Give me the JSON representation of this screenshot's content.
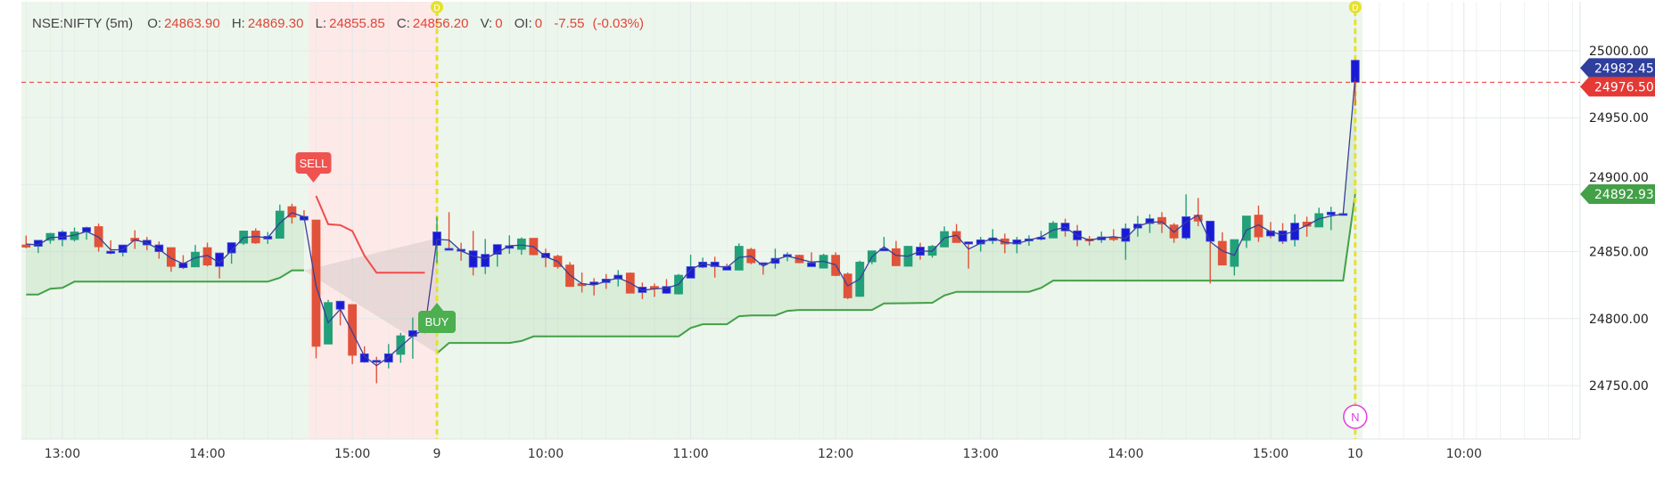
{
  "legend": {
    "symbol": "NSE:NIFTY (5m)",
    "o_label": "O:",
    "o": "24863.90",
    "h_label": "H:",
    "h": "24869.30",
    "l_label": "L:",
    "l": "24855.85",
    "c_label": "C:",
    "c": "24856.20",
    "v_label": "V:",
    "v": "0",
    "oi_label": "OI:",
    "oi": "0",
    "change": "-7.55",
    "change_pct": "(-0.03%)"
  },
  "price_tags": [
    {
      "label": "24982.45",
      "value": 24982.45,
      "color": "#2f3f9e"
    },
    {
      "label": "24976.50",
      "value": 24976.5,
      "color": "#e53935"
    },
    {
      "label": "24892.93",
      "value": 24892.93,
      "color": "#43a047"
    }
  ],
  "signals": {
    "sell": "SELL",
    "buy": "BUY",
    "day_marker": "D",
    "news_marker": "N"
  },
  "colors": {
    "up": "#22a079",
    "down": "#e0533a",
    "neutral": "#1a1ad6",
    "line": "#3a3f9a",
    "stop_up": "#43a047",
    "stop_down": "#f04c4c",
    "sell": "#ef5350",
    "buy": "#4caf50",
    "day_line": "#e6e12a",
    "news": "#e040e0"
  },
  "chart_data": {
    "type": "candlestick",
    "title": "NSE:NIFTY (5m)",
    "ylim": [
      24715,
      25030
    ],
    "y_ticks": [
      {
        "value": 25000,
        "label": "25000.00"
      },
      {
        "value": 24950,
        "label": "24950.00"
      },
      {
        "value": 24900,
        "label": "24900.00"
      },
      {
        "value": 24850,
        "label": "24850.00"
      },
      {
        "value": 24800,
        "label": "24800.00"
      },
      {
        "value": 24750,
        "label": "24750.00"
      }
    ],
    "x_ticks": [
      {
        "bar": -31,
        "label": "13:00"
      },
      {
        "bar": -19,
        "label": "14:00"
      },
      {
        "bar": -7,
        "label": "15:00"
      },
      {
        "bar": 0,
        "label": "9"
      },
      {
        "bar": 9,
        "label": "10:00"
      },
      {
        "bar": 21,
        "label": "11:00"
      },
      {
        "bar": 33,
        "label": "12:00"
      },
      {
        "bar": 45,
        "label": "13:00"
      },
      {
        "bar": 57,
        "label": "14:00"
      },
      {
        "bar": 69,
        "label": "15:00"
      },
      {
        "bar": 76,
        "label": "10"
      },
      {
        "bar": 85,
        "label": "10:00"
      }
    ],
    "day_breaks": [
      0,
      76
    ],
    "candle_fields": [
      "bar",
      "type",
      "open",
      "high",
      "low",
      "close"
    ],
    "candles": [
      [
        -34,
        "d",
        24855,
        24862,
        24852.5,
        24853.4
      ],
      [
        -33,
        "b",
        24854,
        24858.5,
        24849,
        24858.5
      ],
      [
        -32,
        "u",
        24858.5,
        24864,
        24856,
        24863.6
      ],
      [
        -31,
        "b",
        24859,
        24866,
        24854,
        24864.7
      ],
      [
        -30,
        "u",
        24859,
        24868,
        24857.6,
        24864.7
      ],
      [
        -29,
        "b",
        24864.7,
        24868.7,
        24859,
        24868
      ],
      [
        -28,
        "d",
        24868.7,
        24871,
        24850,
        24853.6
      ],
      [
        -27,
        "b",
        24850.3,
        24858.5,
        24848,
        24848.7
      ],
      [
        -26,
        "b",
        24849.4,
        24855,
        24846.5,
        24855
      ],
      [
        -25,
        "d",
        24860,
        24866,
        24852,
        24858
      ],
      [
        -24,
        "b",
        24858.5,
        24861,
        24851,
        24855
      ],
      [
        -23,
        "b",
        24855,
        24857.6,
        24844.7,
        24850
      ],
      [
        -22,
        "d",
        24853,
        24853,
        24835,
        24839
      ],
      [
        -21,
        "b",
        24841.4,
        24847.4,
        24837,
        24838
      ],
      [
        -20,
        "u",
        24838.6,
        24855,
        24838.6,
        24849.6
      ],
      [
        -19,
        "d",
        24853,
        24856.7,
        24839,
        24840
      ],
      [
        -18,
        "b",
        24849,
        24849,
        24830,
        24839
      ],
      [
        -17,
        "b",
        24849,
        24856.7,
        24841,
        24856.7
      ],
      [
        -16,
        "u",
        24856.3,
        24865.4,
        24855,
        24865.4
      ],
      [
        -15,
        "d",
        24865.4,
        24867.4,
        24855.8,
        24856.5
      ],
      [
        -14,
        "b",
        24859.4,
        24864.7,
        24855.8,
        24861.4
      ],
      [
        -13,
        "u",
        24860,
        24885.1,
        24860,
        24880.3
      ],
      [
        -12,
        "d",
        24883.6,
        24885.8,
        24871,
        24875.8
      ],
      [
        -11,
        "b",
        24876.3,
        24881,
        24873.2,
        24873.6
      ],
      [
        -10,
        "d",
        24873.6,
        24873.6,
        24770.4,
        24779.3
      ],
      [
        -9,
        "u",
        24781,
        24814,
        24781,
        24812
      ],
      [
        -8,
        "b",
        24813,
        24813,
        24795,
        24807
      ],
      [
        -7,
        "d",
        24810.5,
        24810.5,
        24766,
        24772.6
      ],
      [
        -6,
        "b",
        24773.7,
        24779.3,
        24767,
        24767.5
      ],
      [
        -5,
        "b",
        24768.8,
        24771.5,
        24751.7,
        24767.5
      ],
      [
        -4,
        "b",
        24767.5,
        24781,
        24762.8,
        24773.7
      ],
      [
        -3,
        "u",
        24773.3,
        24789.4,
        24767,
        24787.2
      ],
      [
        -2,
        "b",
        24786.8,
        24800.8,
        24770,
        24791
      ],
      [
        -1,
        "b",
        24791,
        24796,
        24789,
        24793
      ],
      [
        0,
        "b",
        24854.7,
        24876,
        24841.4,
        24864.7
      ],
      [
        1,
        "b",
        24852.4,
        24879.5,
        24851.3,
        24851.3
      ],
      [
        2,
        "b",
        24851.7,
        24856.6,
        24843.3,
        24850.6
      ],
      [
        3,
        "b",
        24850.6,
        24865.5,
        24832.2,
        24838.4
      ],
      [
        4,
        "b",
        24838.8,
        24859.5,
        24833.3,
        24848
      ],
      [
        5,
        "b",
        24848,
        24855.3,
        24838.8,
        24855.3
      ],
      [
        6,
        "b",
        24852.5,
        24862.2,
        24848.4,
        24854.4
      ],
      [
        7,
        "u",
        24851.7,
        24860.6,
        24847.7,
        24859.5
      ],
      [
        8,
        "d",
        24860,
        24860,
        24847.3,
        24847.7
      ],
      [
        9,
        "b",
        24848.8,
        24852.2,
        24838.4,
        24845.5
      ],
      [
        10,
        "d",
        24846.6,
        24847.7,
        24837.3,
        24838.8
      ],
      [
        11,
        "d",
        24840,
        24842.2,
        24824,
        24824
      ],
      [
        12,
        "d",
        24826.1,
        24834.4,
        24819.5,
        24824.6
      ],
      [
        13,
        "b",
        24827.3,
        24830.2,
        24817.3,
        24825.5
      ],
      [
        14,
        "b",
        24829.5,
        24833.3,
        24822.2,
        24826.9
      ],
      [
        15,
        "b",
        24829.5,
        24836.2,
        24824,
        24832.4
      ],
      [
        16,
        "d",
        24834,
        24834.4,
        24819,
        24819
      ],
      [
        17,
        "b",
        24823.5,
        24826.9,
        24814.6,
        24819.5
      ],
      [
        18,
        "d",
        24824,
        24826.2,
        24816.2,
        24822.4
      ],
      [
        19,
        "b",
        24824,
        24829.5,
        24818.4,
        24818.9
      ],
      [
        20,
        "u",
        24818.4,
        24833.3,
        24818,
        24832.4
      ],
      [
        21,
        "b",
        24830.2,
        24847.7,
        24830.2,
        24838.8
      ],
      [
        22,
        "b",
        24838.4,
        24845.5,
        24837.7,
        24842.2
      ],
      [
        23,
        "b",
        24842.2,
        24846.2,
        24830.6,
        24838.8
      ],
      [
        24,
        "b",
        24839,
        24841,
        24836.2,
        24836.2
      ],
      [
        25,
        "u",
        24836.2,
        24856.2,
        24836.2,
        24854
      ],
      [
        26,
        "d",
        24851.7,
        24852.8,
        24840.6,
        24841.7
      ],
      [
        27,
        "b",
        24841.7,
        24841.7,
        24832.8,
        24840.6
      ],
      [
        28,
        "b",
        24841.3,
        24852.2,
        24837.3,
        24845
      ],
      [
        29,
        "b",
        24846.7,
        24849.5,
        24842.8,
        24847.8
      ],
      [
        30,
        "d",
        24847.3,
        24847.7,
        24841.3,
        24841.7
      ],
      [
        31,
        "b",
        24841.7,
        24849.5,
        24838.8,
        24838.8
      ],
      [
        32,
        "u",
        24837.7,
        24848.4,
        24837.7,
        24847.3
      ],
      [
        33,
        "d",
        24847.3,
        24849.5,
        24831.7,
        24832.2
      ],
      [
        34,
        "d",
        24833.3,
        24834.4,
        24814.6,
        24815.5
      ],
      [
        35,
        "u",
        24816.6,
        24843.3,
        24816.2,
        24842.2
      ],
      [
        36,
        "u",
        24842.4,
        24850.6,
        24840.6,
        24850.6
      ],
      [
        37,
        "b",
        24850.6,
        24861,
        24850.6,
        24852.2
      ],
      [
        38,
        "d",
        24852.2,
        24858,
        24839.1,
        24839.5
      ],
      [
        39,
        "u",
        24839.1,
        24854.4,
        24838.8,
        24854
      ],
      [
        40,
        "b",
        24853.4,
        24856.6,
        24844,
        24847.3
      ],
      [
        41,
        "u",
        24847.3,
        24855,
        24845.5,
        24854
      ],
      [
        42,
        "u",
        24853.5,
        24868.8,
        24853.5,
        24865
      ],
      [
        43,
        "d",
        24865,
        24870.6,
        24856.8,
        24856.8
      ],
      [
        44,
        "b",
        24857.3,
        24857.3,
        24837.3,
        24855.7
      ],
      [
        45,
        "b",
        24855.7,
        24861,
        24850,
        24858.8
      ],
      [
        46,
        "b",
        24858.2,
        24866.8,
        24855.7,
        24860.2
      ],
      [
        47,
        "d",
        24859.5,
        24863.5,
        24848.8,
        24855.7
      ],
      [
        48,
        "b",
        24855.7,
        24861,
        24848.8,
        24858.8
      ],
      [
        49,
        "b",
        24858,
        24862.2,
        24854.4,
        24859.5
      ],
      [
        50,
        "b",
        24859.5,
        24865.5,
        24858.4,
        24860.6
      ],
      [
        51,
        "u",
        24860.2,
        24872.8,
        24860.2,
        24871.3
      ],
      [
        52,
        "b",
        24871.3,
        24874.6,
        24861.2,
        24865.5
      ],
      [
        53,
        "b",
        24865.5,
        24869.9,
        24854,
        24858.8
      ],
      [
        54,
        "d",
        24859.5,
        24861.7,
        24854.6,
        24858
      ],
      [
        55,
        "b",
        24858.8,
        24865,
        24856.6,
        24861
      ],
      [
        56,
        "d",
        24860.6,
        24866.8,
        24857.9,
        24859
      ],
      [
        57,
        "b",
        24857.7,
        24871,
        24843.9,
        24867.2
      ],
      [
        58,
        "b",
        24867.6,
        24876.7,
        24861.2,
        24870.6
      ],
      [
        59,
        "b",
        24871,
        24877.9,
        24863.9,
        24874.6
      ],
      [
        60,
        "d",
        24875.5,
        24879.5,
        24863.9,
        24870.6
      ],
      [
        61,
        "d",
        24869.9,
        24871.3,
        24856.6,
        24860.2
      ],
      [
        62,
        "b",
        24860.2,
        24892.8,
        24859,
        24876.1
      ],
      [
        63,
        "d",
        24877.3,
        24890.1,
        24869,
        24872.8
      ],
      [
        64,
        "b",
        24872.8,
        24872.8,
        24826.2,
        24857.7
      ],
      [
        65,
        "d",
        24857.7,
        24864.4,
        24840,
        24840
      ],
      [
        66,
        "u",
        24839,
        24859,
        24832.2,
        24859
      ],
      [
        67,
        "u",
        24858.4,
        24876.6,
        24852.8,
        24876.6
      ],
      [
        68,
        "d",
        24877.3,
        24884.4,
        24857.3,
        24861
      ],
      [
        69,
        "b",
        24865.5,
        24872.1,
        24860,
        24861.7
      ],
      [
        70,
        "b",
        24865.5,
        24871.3,
        24855.7,
        24857.7
      ],
      [
        71,
        "b",
        24858.8,
        24877.9,
        24853.9,
        24871.3
      ],
      [
        72,
        "d",
        24872.1,
        24876.1,
        24861.2,
        24869
      ],
      [
        73,
        "u",
        24868.4,
        24882.8,
        24868.4,
        24878.4
      ],
      [
        74,
        "b",
        24877.5,
        24883.5,
        24866.1,
        24879.5
      ],
      [
        75,
        "b",
        24878,
        24879,
        24877,
        24878.4
      ],
      [
        76,
        "b",
        24992.9,
        24993.5,
        24959,
        24976.5
      ]
    ],
    "stop_up": [
      [
        [
          -34,
          24818
        ],
        [
          -33,
          24818
        ],
        [
          -32,
          24822.3
        ],
        [
          -31,
          24823
        ],
        [
          -30,
          24827.6
        ],
        [
          -14,
          24827.6
        ],
        [
          -13,
          24830.5
        ],
        [
          -12,
          24836
        ],
        [
          -11,
          24836
        ]
      ],
      [
        [
          0,
          24774
        ],
        [
          1,
          24781.8
        ],
        [
          6,
          24781.8
        ],
        [
          7,
          24783.3
        ],
        [
          8,
          24786.7
        ],
        [
          20,
          24786.7
        ],
        [
          21,
          24793
        ],
        [
          22,
          24795.8
        ],
        [
          24,
          24795.8
        ],
        [
          25,
          24801.8
        ],
        [
          26,
          24802.4
        ],
        [
          28,
          24802.4
        ],
        [
          29,
          24805.8
        ],
        [
          30,
          24806.4
        ],
        [
          36,
          24806.4
        ],
        [
          37,
          24811.3
        ],
        [
          41,
          24811.8
        ],
        [
          42,
          24817.3
        ],
        [
          43,
          24820
        ],
        [
          49,
          24820
        ],
        [
          50,
          24822.9
        ],
        [
          51,
          24828.4
        ],
        [
          75,
          24828.4
        ],
        [
          76,
          24892.93
        ]
      ]
    ],
    "stop_down": [
      [
        -10,
        24891.6
      ],
      [
        -9,
        24870.5
      ],
      [
        -8,
        24869.8
      ],
      [
        -7,
        24865.4
      ],
      [
        -6,
        24847
      ],
      [
        -5,
        24834.3
      ],
      [
        -1,
        24834.3
      ]
    ],
    "last_price": 24976.5,
    "sell_bar": -10,
    "buy_bar": 0
  }
}
